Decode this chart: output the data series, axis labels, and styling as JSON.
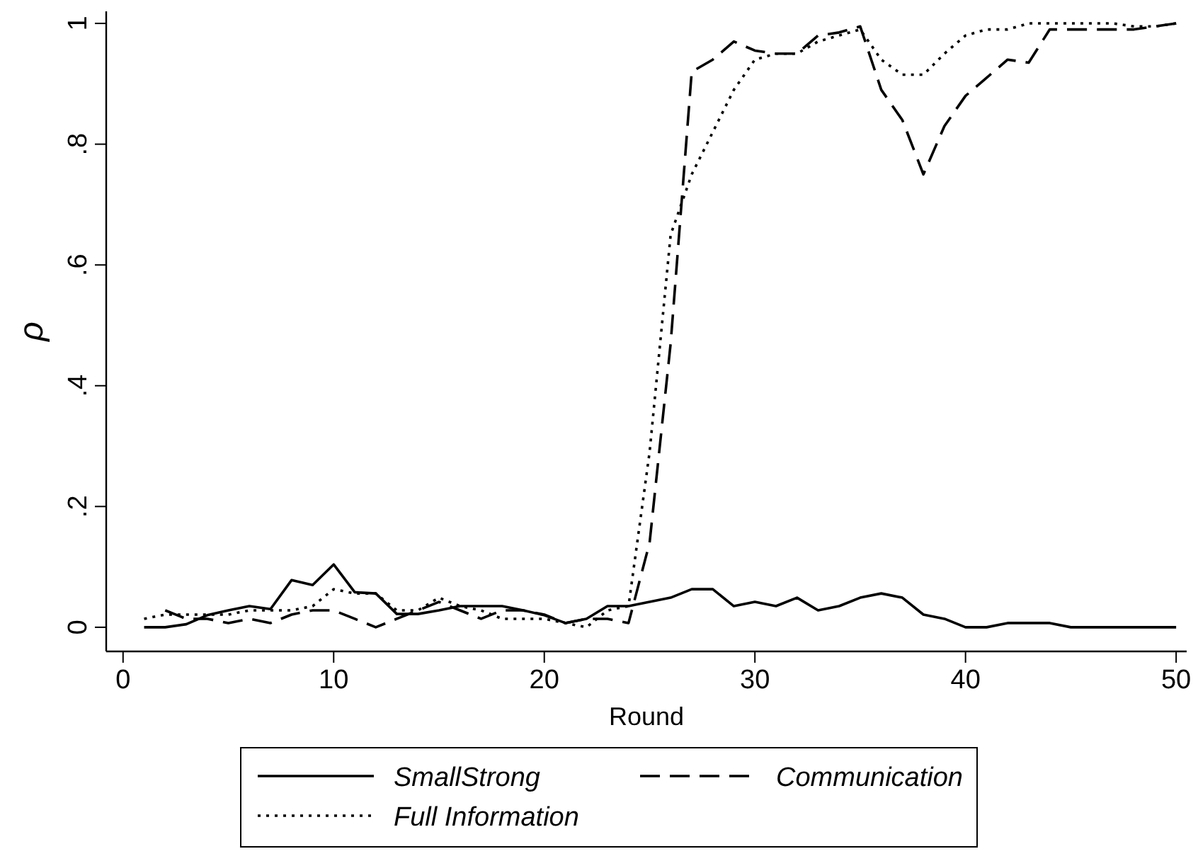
{
  "chart_data": {
    "type": "line",
    "xlabel": "Round",
    "ylabel": "ρ",
    "x": [
      1,
      2,
      3,
      4,
      5,
      6,
      7,
      8,
      9,
      10,
      11,
      12,
      13,
      14,
      15,
      16,
      17,
      18,
      19,
      20,
      21,
      22,
      23,
      24,
      25,
      26,
      27,
      28,
      29,
      30,
      31,
      32,
      33,
      34,
      35,
      36,
      37,
      38,
      39,
      40,
      41,
      42,
      43,
      44,
      45,
      46,
      47,
      48,
      49,
      50
    ],
    "xlim": [
      -0.8,
      50.5
    ],
    "xticks": [
      0,
      10,
      20,
      30,
      40,
      50
    ],
    "ylim": [
      -0.04,
      1.02
    ],
    "yticks": [
      {
        "value": 0,
        "label": "0"
      },
      {
        "value": 0.2,
        "label": ".2"
      },
      {
        "value": 0.4,
        "label": ".4"
      },
      {
        "value": 0.6,
        "label": ".6"
      },
      {
        "value": 0.8,
        "label": ".8"
      },
      {
        "value": 1,
        "label": "1"
      }
    ],
    "grid": false,
    "legend": "bottom",
    "marker": "none",
    "series": [
      {
        "name": "SmallStrong",
        "color": "#000000",
        "line_style": "solid",
        "values": [
          0,
          0,
          0.005,
          0.02,
          0.028,
          0.035,
          0.03,
          0.078,
          0.07,
          0.104,
          0.058,
          0.056,
          0.022,
          0.022,
          0.028,
          0.035,
          0.035,
          0.035,
          0.028,
          0.02,
          0.007,
          0.014,
          0.035,
          0.035,
          0.042,
          0.049,
          0.063,
          0.063,
          0.035,
          0.042,
          0.035,
          0.049,
          0.028,
          0.035,
          0.049,
          0.056,
          0.049,
          0.021,
          0.014,
          0,
          0,
          0.007,
          0.007,
          0.007,
          0,
          0,
          0,
          0,
          0,
          0
        ]
      },
      {
        "name": "Communication",
        "color": "#000000",
        "line_style": "dashed",
        "values": [
          null,
          0.028,
          0.014,
          0.014,
          0.007,
          0.014,
          0.007,
          0.021,
          0.028,
          0.028,
          0.014,
          0,
          0.014,
          0.028,
          0.042,
          0.028,
          0.014,
          0.028,
          0.028,
          0.021,
          0.007,
          0.014,
          0.014,
          0.007,
          0.14,
          0.47,
          0.92,
          0.94,
          0.97,
          0.955,
          0.95,
          0.95,
          0.98,
          0.985,
          0.995,
          0.89,
          0.84,
          0.75,
          0.83,
          0.88,
          0.91,
          0.94,
          0.935,
          0.99,
          0.99,
          0.99,
          0.99,
          0.99,
          0.995,
          1
        ]
      },
      {
        "name": "Full Information",
        "color": "#000000",
        "line_style": "dotted",
        "values": [
          0.014,
          0.021,
          0.021,
          0.021,
          0.021,
          0.028,
          0.028,
          0.028,
          0.035,
          0.063,
          0.056,
          0.056,
          0.028,
          0.028,
          0.049,
          0.035,
          0.028,
          0.014,
          0.014,
          0.014,
          0.007,
          0,
          0.028,
          0.035,
          0.29,
          0.65,
          0.75,
          0.82,
          0.89,
          0.94,
          0.95,
          0.95,
          0.97,
          0.98,
          0.99,
          0.94,
          0.915,
          0.915,
          0.95,
          0.98,
          0.99,
          0.99,
          1,
          1,
          1,
          1,
          1,
          0.995,
          0.995,
          1
        ]
      }
    ]
  }
}
